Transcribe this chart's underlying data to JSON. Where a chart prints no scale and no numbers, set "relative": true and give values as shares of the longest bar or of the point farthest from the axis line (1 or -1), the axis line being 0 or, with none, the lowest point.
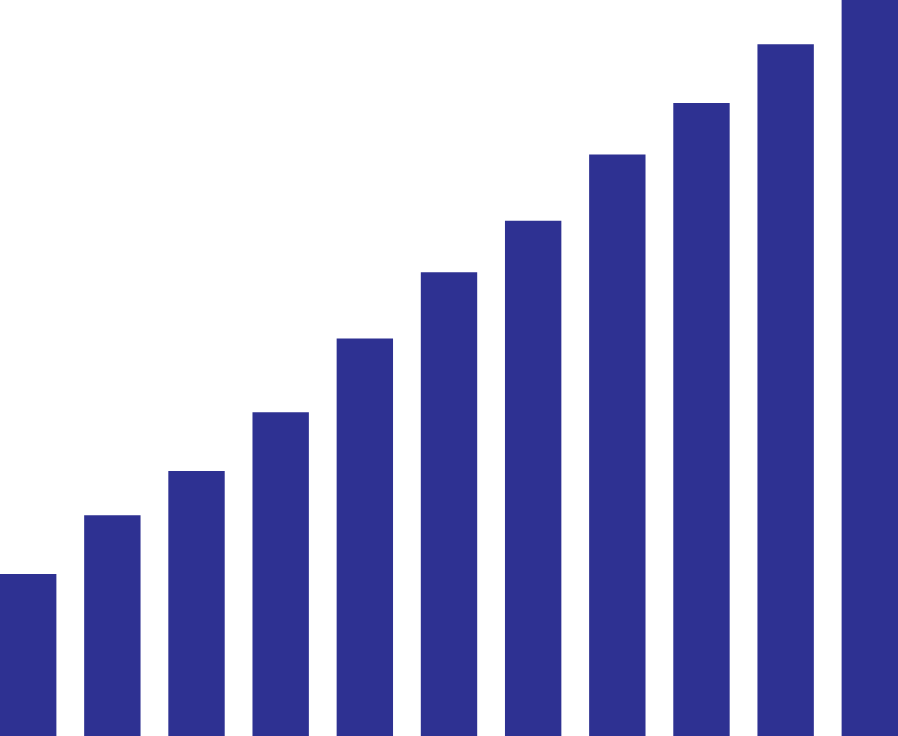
{
  "chart_data": {
    "type": "bar",
    "relative": true,
    "categories": [
      null,
      null,
      null,
      null,
      null,
      null,
      null,
      null,
      null,
      null,
      null
    ],
    "values": [
      0.22,
      0.3,
      0.36,
      0.44,
      0.54,
      0.63,
      0.7,
      0.79,
      0.86,
      0.94,
      1
    ],
    "color": "#2e3192"
  }
}
